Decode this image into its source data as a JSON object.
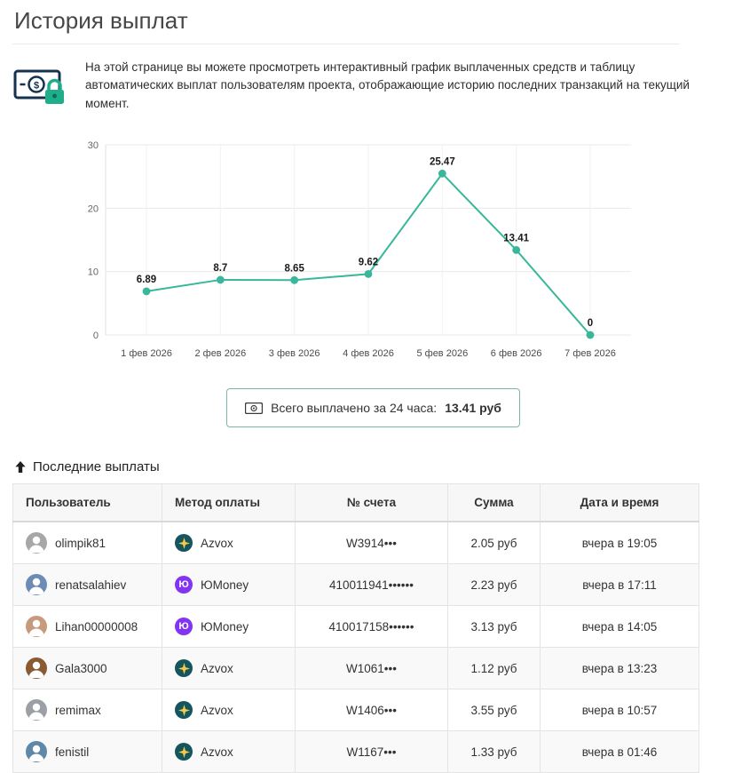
{
  "page": {
    "title": "История выплат",
    "description": "На этой странице вы можете просмотреть интерактивный график выплаченных средств и таблицу автоматических выплат пользователям проекта, отображающие историю последних транзакций на текущий момент."
  },
  "chart_data": {
    "type": "line",
    "categories": [
      "1 фев 2026",
      "2 фев 2026",
      "3 фев 2026",
      "4 фев 2026",
      "5 фев 2026",
      "6 фев 2026",
      "7 фев 2026"
    ],
    "values": [
      6.89,
      8.7,
      8.65,
      9.62,
      25.47,
      13.41,
      0
    ],
    "labels": [
      "6.89",
      "8.7",
      "8.65",
      "9.62",
      "25.47",
      "13.41",
      "0"
    ],
    "title": "",
    "xlabel": "",
    "ylabel": "",
    "ylim": [
      0,
      30
    ],
    "yticks": [
      0,
      10,
      20,
      30
    ],
    "grid": true,
    "line_color": "#38b79a",
    "point_color": "#38b79a",
    "label_color": "#1a1a1a"
  },
  "total": {
    "label": "Всего выплачено за 24 часа:",
    "value": "13.41 руб"
  },
  "recent": {
    "title": "Последние выплаты",
    "columns": [
      "Пользователь",
      "Метод оплаты",
      "№ счета",
      "Сумма",
      "Дата и время"
    ],
    "rows": [
      {
        "user": "olimpik81",
        "method": "azvox",
        "account": "W3914•••",
        "amount": "2.05 руб",
        "datetime": "вчера в 19:05",
        "avatar_color": "#a7a7a7"
      },
      {
        "user": "renatsalahiev",
        "method": "yoomoney",
        "account": "410011941••••••",
        "amount": "2.23 руб",
        "datetime": "вчера в 17:11",
        "avatar_color": "#6d8cb5"
      },
      {
        "user": "Lihan00000008",
        "method": "yoomoney",
        "account": "410017158••••••",
        "amount": "3.13 руб",
        "datetime": "вчера в 14:05",
        "avatar_color": "#c79a7d"
      },
      {
        "user": "Gala3000",
        "method": "azvox",
        "account": "W1061•••",
        "amount": "1.12 руб",
        "datetime": "вчера в 13:23",
        "avatar_color": "#8a5a33"
      },
      {
        "user": "remimax",
        "method": "azvox",
        "account": "W1406•••",
        "amount": "3.55 руб",
        "datetime": "вчера в 10:57",
        "avatar_color": "#9aa0a6"
      },
      {
        "user": "fenistil",
        "method": "azvox",
        "account": "W1167•••",
        "amount": "1.33 руб",
        "datetime": "вчера в 01:46",
        "avatar_color": "#5f87a8"
      }
    ]
  },
  "payment_methods": {
    "azvox": {
      "label": "Azvox",
      "bg": "#15565e",
      "star_color": "#f7c94b"
    },
    "yoomoney": {
      "label": "ЮMoney",
      "bg": "#8334f3",
      "glyph": "Ю"
    }
  }
}
